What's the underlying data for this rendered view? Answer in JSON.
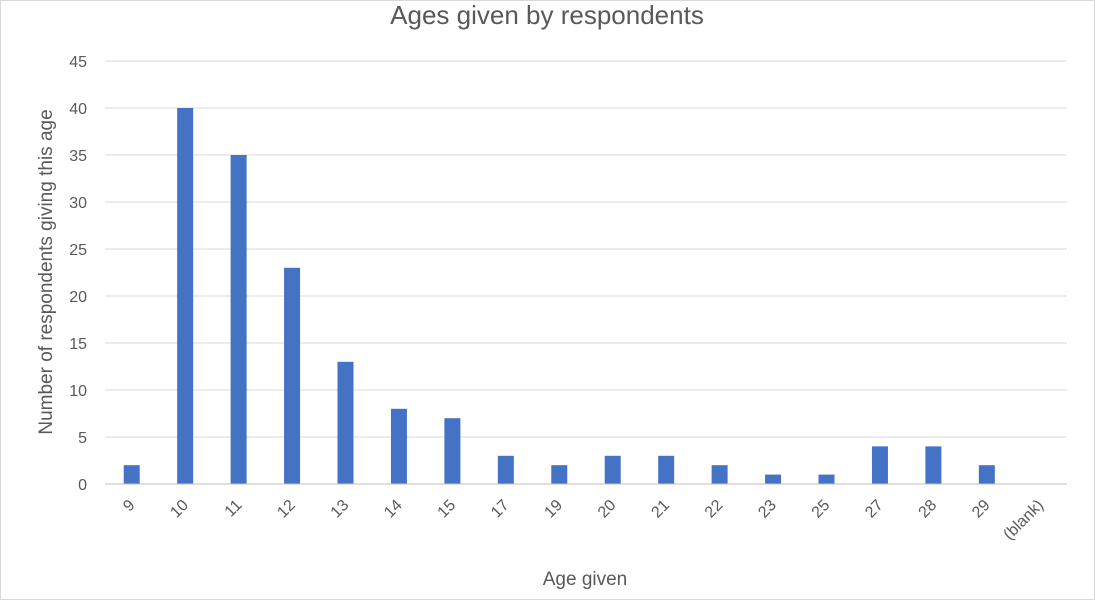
{
  "chart_data": {
    "type": "bar",
    "title": "Ages given by respondents",
    "xlabel": "Age given",
    "ylabel": "Number of respondents giving this age",
    "categories": [
      "9",
      "10",
      "11",
      "12",
      "13",
      "14",
      "15",
      "17",
      "19",
      "20",
      "21",
      "22",
      "23",
      "25",
      "27",
      "28",
      "29",
      "(blank)"
    ],
    "values": [
      2,
      40,
      35,
      23,
      13,
      8,
      7,
      3,
      2,
      3,
      3,
      2,
      1,
      1,
      4,
      4,
      2,
      0
    ],
    "ylim": [
      0,
      45
    ],
    "yticks": [
      0,
      5,
      10,
      15,
      20,
      25,
      30,
      35,
      40,
      45
    ],
    "grid": true,
    "legend": "none",
    "bar_color": "#4472c4"
  }
}
